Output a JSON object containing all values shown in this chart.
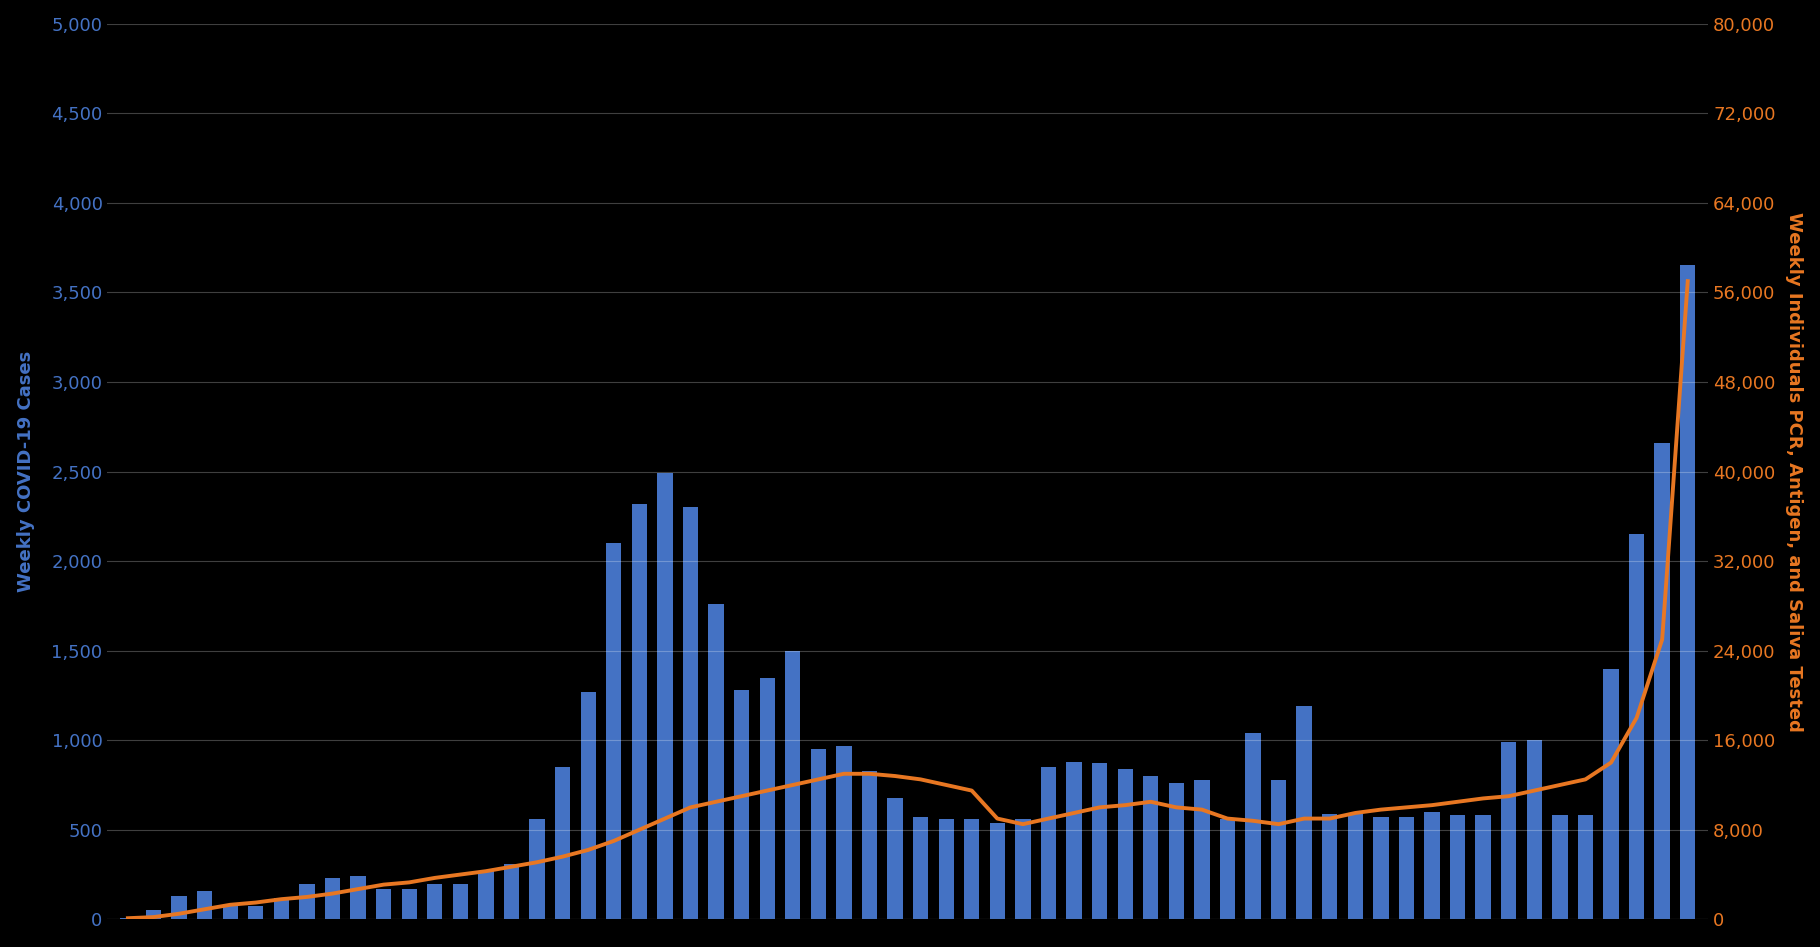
{
  "background_color": "#000000",
  "plot_bg_color": "#000000",
  "bar_color": "#4472C4",
  "line_color": "#E87722",
  "left_axis_color": "#4472C4",
  "right_axis_color": "#E87722",
  "left_ylabel": "Weekly COVID-19 Cases",
  "right_ylabel": "Weekly Individuals PCR, Antigen, and Saliva Tested",
  "left_ylim": [
    0,
    5000
  ],
  "right_ylim": [
    0,
    80000
  ],
  "left_yticks": [
    0,
    500,
    1000,
    1500,
    2000,
    2500,
    3000,
    3500,
    4000,
    4500,
    5000
  ],
  "right_yticks": [
    0,
    8000,
    16000,
    24000,
    32000,
    40000,
    48000,
    56000,
    64000,
    72000,
    80000
  ],
  "grid_color": "#ffffff",
  "grid_alpha": 0.25,
  "bar_values": [
    10,
    50,
    130,
    160,
    75,
    75,
    120,
    200,
    230,
    240,
    170,
    170,
    200,
    200,
    270,
    310,
    560,
    850,
    1270,
    2100,
    2320,
    2490,
    2300,
    1760,
    1280,
    1350,
    1500,
    950,
    970,
    830,
    680,
    570,
    560,
    560,
    540,
    560,
    850,
    880,
    870,
    840,
    800,
    760,
    780,
    560,
    1040,
    780,
    1190,
    590,
    590,
    570,
    570,
    600,
    580,
    580,
    990,
    1000,
    580,
    580,
    1400,
    2150,
    2660,
    3650
  ],
  "line_values": [
    100,
    200,
    500,
    900,
    1300,
    1500,
    1800,
    2000,
    2300,
    2700,
    3100,
    3300,
    3700,
    4000,
    4300,
    4700,
    5100,
    5600,
    6200,
    7000,
    8000,
    9000,
    10000,
    10500,
    11000,
    11500,
    12000,
    12500,
    13000,
    13000,
    12800,
    12500,
    12000,
    11500,
    9000,
    8500,
    9000,
    9500,
    10000,
    10200,
    10500,
    10000,
    9800,
    9000,
    8800,
    8500,
    9000,
    9000,
    9500,
    9800,
    10000,
    10200,
    10500,
    10800,
    11000,
    11500,
    12000,
    12500,
    14000,
    18000,
    25000,
    57000
  ]
}
